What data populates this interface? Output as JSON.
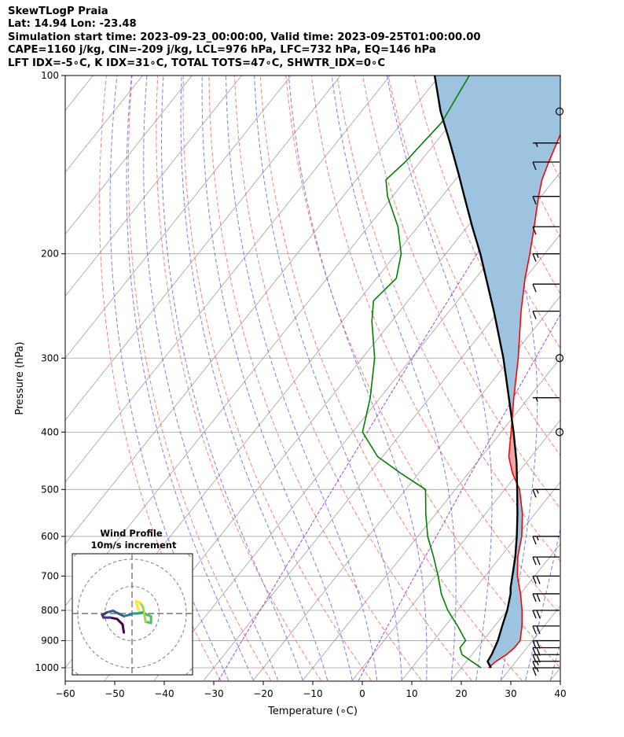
{
  "header": {
    "title": "SkewTLogP Praia",
    "location": "Lat: 14.94   Lon: -23.48",
    "times": "Simulation start time: 2023-09-23_00:00:00, Valid time: 2023-09-25T01:00:00.00",
    "indices1": "CAPE=1160 j/kg, CIN=-209 j/kg, LCL=976 hPa, LFC=732 hPa, EQ=146 hPa",
    "indices2": "LFT IDX=-5∘C, K IDX=31∘C, TOTAL TOTS=47∘C, SHWTR_IDX=0∘C"
  },
  "chart_data": [
    {
      "type": "line",
      "xlabel": "Temperature (∘C)",
      "ylabel": "Pressure (hPa)",
      "xlim": [
        -60,
        40
      ],
      "ylim": [
        1050,
        100
      ],
      "y_scale": "log",
      "x_skewed": true,
      "grid": true,
      "x_ticks": [
        -60,
        -50,
        -40,
        -30,
        -20,
        -10,
        0,
        10,
        20,
        30,
        40
      ],
      "y_ticks": [
        1000,
        900,
        800,
        700,
        600,
        500,
        400,
        300,
        200,
        100
      ],
      "x_tick_labels": [
        "−60",
        "−50",
        "−40",
        "−30",
        "−20",
        "−10",
        "0",
        "10",
        "20",
        "30",
        "40"
      ],
      "y_tick_labels": [
        "1000",
        "900",
        "800",
        "700",
        "600",
        "500",
        "400",
        "300",
        "200",
        "100"
      ],
      "series": [
        {
          "role": "temperature",
          "color": "#ff0000",
          "pressure": [
            1000,
            975,
            950,
            925,
            900,
            850,
            800,
            750,
            700,
            650,
            600,
            550,
            500,
            470,
            440,
            400,
            350,
            300,
            250,
            220,
            200,
            180,
            160,
            150,
            140,
            120,
            100
          ],
          "temperature": [
            25.5,
            26.0,
            27.0,
            27.5,
            27.5,
            25.5,
            23.0,
            20.0,
            16.5,
            13.5,
            11.0,
            7.5,
            3.0,
            -1.0,
            -4.5,
            -8.0,
            -13.0,
            -18.5,
            -25.5,
            -30.0,
            -33.0,
            -36.5,
            -40.5,
            -42.5,
            -44.0,
            -47.0,
            -50.0
          ]
        },
        {
          "role": "dewpoint",
          "color": "#008000",
          "pressure": [
            1000,
            975,
            950,
            925,
            900,
            850,
            800,
            750,
            700,
            650,
            600,
            550,
            500,
            470,
            440,
            400,
            350,
            300,
            260,
            240,
            220,
            200,
            180,
            160,
            150,
            140,
            120,
            100
          ],
          "temperature": [
            24.0,
            21.0,
            18.0,
            16.5,
            16.5,
            12.5,
            8.0,
            4.0,
            0.5,
            -3.5,
            -8.0,
            -12.0,
            -16.0,
            -23.5,
            -31.0,
            -38.0,
            -42.0,
            -47.5,
            -54.0,
            -57.0,
            -56.0,
            -59.0,
            -64.0,
            -71.0,
            -74.0,
            -73.0,
            -72.0,
            -74.0
          ]
        },
        {
          "role": "parcel",
          "color": "#000000",
          "pressure": [
            1000,
            976,
            950,
            900,
            850,
            800,
            750,
            732,
            700,
            650,
            600,
            550,
            500,
            450,
            400,
            350,
            300,
            250,
            200,
            180,
            160,
            146,
            130,
            115,
            100
          ],
          "temperature": [
            26.0,
            24.3,
            24.0,
            23.0,
            21.5,
            20.0,
            18.0,
            17.0,
            15.5,
            13.0,
            10.0,
            6.5,
            2.5,
            -2.0,
            -7.5,
            -14.0,
            -21.5,
            -31.0,
            -43.0,
            -49.0,
            -55.5,
            -60.5,
            -67.0,
            -74.0,
            -81.0
          ]
        }
      ],
      "positive_area_color": "#f0a8a8",
      "negative_area_color": "#9dc3e0",
      "dry_adiabat_color": "#ff6464",
      "moist_adiabat_color": "#6464ff",
      "mixing_ratio_color": "#9b30d0",
      "isotherm_color": "#a0a0a0",
      "wind_barbs": [
        {
          "pressure": 1000,
          "speed_kt": 15
        },
        {
          "pressure": 975,
          "speed_kt": 15
        },
        {
          "pressure": 950,
          "speed_kt": 20
        },
        {
          "pressure": 925,
          "speed_kt": 20
        },
        {
          "pressure": 900,
          "speed_kt": 20
        },
        {
          "pressure": 850,
          "speed_kt": 20
        },
        {
          "pressure": 800,
          "speed_kt": 20
        },
        {
          "pressure": 750,
          "speed_kt": 20
        },
        {
          "pressure": 700,
          "speed_kt": 20
        },
        {
          "pressure": 650,
          "speed_kt": 20
        },
        {
          "pressure": 600,
          "speed_kt": 15
        },
        {
          "pressure": 500,
          "speed_kt": 15
        },
        {
          "pressure": 400,
          "speed_kt": 0
        },
        {
          "pressure": 350,
          "speed_kt": 5
        },
        {
          "pressure": 300,
          "speed_kt": 0
        },
        {
          "pressure": 250,
          "speed_kt": 10
        },
        {
          "pressure": 225,
          "speed_kt": 10
        },
        {
          "pressure": 200,
          "speed_kt": 15
        },
        {
          "pressure": 180,
          "speed_kt": 10
        },
        {
          "pressure": 160,
          "speed_kt": 10
        },
        {
          "pressure": 140,
          "speed_kt": 10
        },
        {
          "pressure": 130,
          "speed_kt": 5
        },
        {
          "pressure": 115,
          "speed_kt": 0
        }
      ]
    },
    {
      "type": "line",
      "title": "Wind Profile",
      "subtitle": "10m/s increment",
      "description": "hodograph",
      "ring_step_ms": 10,
      "rings": 3,
      "range_ms": [
        -22,
        22
      ],
      "colormap": "viridis",
      "points": [
        {
          "u": -3.0,
          "v": -7.0
        },
        {
          "u": -3.5,
          "v": -4.0
        },
        {
          "u": -5.5,
          "v": -2.0
        },
        {
          "u": -8.0,
          "v": -1.5
        },
        {
          "u": -10.5,
          "v": -1.5
        },
        {
          "u": -11.0,
          "v": -0.5
        },
        {
          "u": -9.0,
          "v": 0.5
        },
        {
          "u": -7.0,
          "v": 1.0
        },
        {
          "u": -5.0,
          "v": 0.0
        },
        {
          "u": -3.0,
          "v": -1.0
        },
        {
          "u": -1.0,
          "v": -0.5
        },
        {
          "u": 0.5,
          "v": 0.0
        },
        {
          "u": 2.0,
          "v": 0.0
        },
        {
          "u": 4.0,
          "v": 0.5
        },
        {
          "u": 5.5,
          "v": -0.5
        },
        {
          "u": 7.0,
          "v": -1.0
        },
        {
          "u": 7.0,
          "v": -3.5
        },
        {
          "u": 5.0,
          "v": -3.0
        },
        {
          "u": 4.5,
          "v": 0.0
        },
        {
          "u": 4.0,
          "v": 2.5
        },
        {
          "u": 3.0,
          "v": 4.0
        },
        {
          "u": 1.5,
          "v": 4.5
        },
        {
          "u": 2.0,
          "v": 2.5
        },
        {
          "u": 2.5,
          "v": 1.0
        }
      ]
    }
  ]
}
